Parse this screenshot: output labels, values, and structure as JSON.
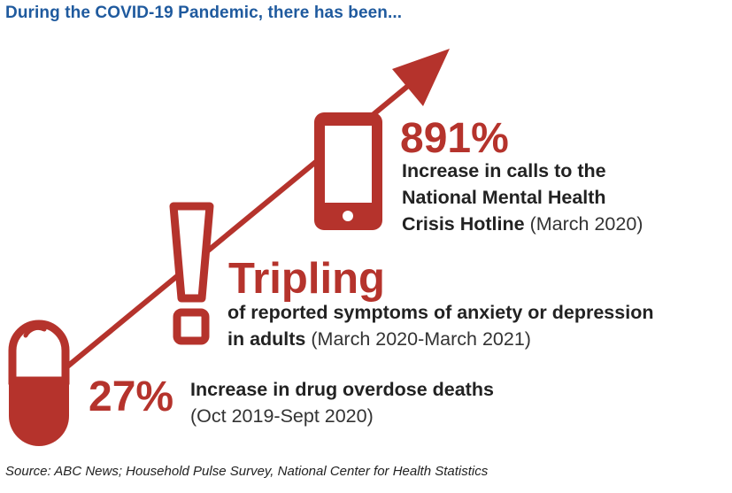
{
  "header": {
    "title": "During the COVID-19 Pandemic, there has been..."
  },
  "stats": [
    {
      "value": "891%",
      "line1_bold": "Increase in calls to the",
      "line2_bold": "National Mental Health",
      "line3_bold": "Crisis Hotline",
      "line3_normal": "(March 2020)",
      "icon": "phone-icon"
    },
    {
      "value": "Tripling",
      "line1_bold": "of reported symptoms of anxiety or depression",
      "line2_bold": "in adults",
      "line2_normal": "(March 2020-March 2021)",
      "icon": "exclamation-icon"
    },
    {
      "value": "27%",
      "line1_bold": "Increase in drug overdose deaths",
      "line2_normal": "(Oct 2019-Sept 2020)",
      "icon": "pill-icon"
    }
  ],
  "source": "Source: ABC News; Household Pulse Survey, National Center for Health Statistics",
  "colors": {
    "accent": "#b5332c",
    "title": "#1f5a9e",
    "text": "#222222"
  }
}
